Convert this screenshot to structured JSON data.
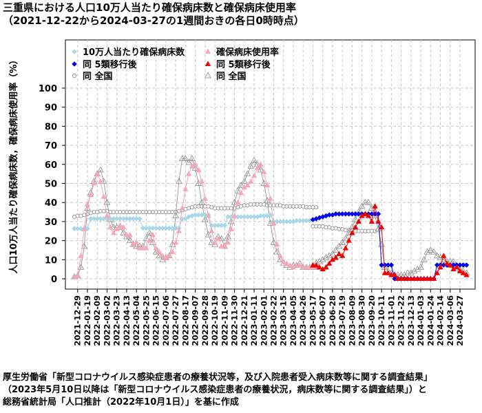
{
  "title": "三重県における人口10万人当たり確保病床数と確保病床使用率",
  "subtitle": "（2021-12-22から2024-03-27の1週間おきの各日0時時点）",
  "footer": {
    "line1": "厚生労働省「新型コロナウイルス感染症患者の療養状況等，及び入院患者受入病床数等に関する調査結果」",
    "line2": "（2023年5月10日以降は「新型コロナウイルス感染症患者の療養状況，病床数等に関する調査結果」）と",
    "line3": "総務省統計局「人口推計（2022年10月1日）」を基に作成"
  },
  "chart_data": {
    "type": "scatter",
    "ylabel": "人口10万人当たり確保病床数，確保病床使用率（%）",
    "ylim": [
      0,
      100
    ],
    "yticks": [
      0,
      10,
      20,
      30,
      40,
      50,
      60,
      70,
      80,
      90,
      100
    ],
    "grid": true,
    "legend_position": "top-left",
    "x_start": "2021-12-22",
    "x_step_days": 7,
    "x_tick_labels": [
      "2021-12-29",
      "2022-01-19",
      "2022-02-09",
      "2022-03-02",
      "2022-03-23",
      "2022-04-13",
      "2022-05-04",
      "2022-05-25",
      "2022-06-15",
      "2022-07-06",
      "2022-07-27",
      "2022-08-17",
      "2022-09-07",
      "2022-09-28",
      "2022-10-19",
      "2022-11-09",
      "2022-11-30",
      "2022-12-21",
      "2023-01-11",
      "2023-02-01",
      "2023-02-22",
      "2023-03-15",
      "2023-04-05",
      "2023-04-26",
      "2023-05-17",
      "2023-06-07",
      "2023-06-28",
      "2023-07-19",
      "2023-08-09",
      "2023-08-30",
      "2023-09-20",
      "2023-10-11",
      "2023-11-01",
      "2023-11-22",
      "2023-12-13",
      "2024-01-03",
      "2024-01-24",
      "2024-02-14",
      "2024-03-06",
      "2024-03-27"
    ],
    "colors": {
      "beds": "#a8d8e8",
      "beds_post": "#0000ee",
      "usage": "#f4a8b8",
      "usage_post": "#ee0000",
      "national": "#999999"
    },
    "series": [
      {
        "name": "10万人当たり確保病床数",
        "marker": "diamond",
        "start": "2021-12-22",
        "values": [
          26.3,
          26.3,
          26.3,
          26.3,
          26.3,
          31.5,
          31.5,
          31.5,
          31.5,
          31.5,
          31.5,
          31.5,
          31.5,
          31.5,
          31.5,
          31.5,
          31.5,
          31.5,
          31.5,
          31.5,
          31.5,
          26.5,
          26.5,
          26.5,
          26.5,
          26.5,
          26.5,
          26.5,
          26.5,
          26.5,
          26.5,
          26.5,
          26.5,
          31.5,
          31.5,
          32.5,
          33,
          33.5,
          33.5,
          33.5,
          33.5,
          33.5,
          28,
          28,
          28,
          28,
          28,
          32.5,
          32.5,
          32.5,
          32.5,
          32.5,
          32.5,
          32.5,
          32.5,
          32.5,
          32.5,
          33,
          33,
          33,
          33.5,
          30,
          30,
          30,
          30,
          30,
          30,
          30,
          30.5,
          30.5,
          30.5,
          30.5,
          30.5,
          31,
          31
        ]
      },
      {
        "name": "同 5類移行後",
        "marker": "diamond",
        "start": "2023-05-17",
        "values": [
          31,
          31.5,
          32,
          32.5,
          33,
          33.5,
          33.5,
          34,
          34,
          34,
          34,
          34,
          34,
          34,
          34,
          34,
          34,
          34,
          34,
          34,
          34,
          7.2,
          7.2,
          7.2,
          7.2,
          0,
          0,
          0,
          0,
          0,
          0,
          0,
          0,
          0,
          0,
          0,
          0,
          0,
          7.2,
          7.2,
          7.2,
          7.2,
          7.2,
          7.2,
          7.2,
          7.2,
          7.2,
          7.2
        ]
      },
      {
        "name": "同 全国",
        "marker": "circle",
        "start": "2021-12-22",
        "values": [
          32.5,
          33,
          33,
          33.5,
          34,
          34.5,
          35,
          35,
          35.5,
          35.5,
          35.5,
          35,
          35,
          35,
          35,
          35,
          35,
          35,
          35,
          35,
          35,
          35,
          35,
          35,
          35,
          35,
          35,
          35,
          35,
          35,
          35,
          35,
          35.5,
          36,
          36.5,
          37,
          37.5,
          38,
          38,
          38,
          38,
          38,
          37.5,
          37,
          37,
          37,
          37,
          37,
          37,
          37,
          37.5,
          38,
          38.5,
          38.5,
          39,
          39,
          39,
          39,
          39,
          38.5,
          38.5,
          38.5,
          38.5,
          38.5,
          38,
          38,
          38,
          38,
          38,
          38,
          38,
          37.5,
          37.5,
          37.5,
          37.5
        ]
      },
      {
        "name": "同 全国",
        "marker": "circle",
        "start": "2023-05-17",
        "values": [
          27.5,
          27.5,
          27.5,
          27.5,
          27,
          27,
          26.5,
          26.5,
          26,
          26,
          25.5,
          25.5,
          25.5,
          25,
          25,
          25,
          25,
          25,
          25,
          25
        ]
      },
      {
        "name": "確保病床使用率",
        "marker": "triangle",
        "start": "2021-12-22",
        "values": [
          1,
          1.5,
          12,
          26,
          39,
          44,
          50,
          55,
          51,
          43,
          33,
          27,
          24,
          26,
          28,
          27,
          23,
          23,
          18,
          19,
          16,
          16,
          16,
          20,
          23,
          16,
          14,
          12,
          11,
          12,
          14,
          19,
          25,
          37,
          47,
          55,
          59,
          60,
          57,
          51,
          42,
          33,
          25,
          19,
          21,
          17,
          17,
          19,
          26,
          33,
          40,
          45,
          48,
          49,
          51,
          54,
          58,
          60,
          56,
          49,
          42,
          29,
          18,
          12,
          9,
          8,
          7,
          6,
          7,
          7,
          6,
          6,
          6,
          6,
          6
        ]
      },
      {
        "name": "同 5類移行後",
        "marker": "triangle",
        "start": "2023-05-17",
        "values": [
          7,
          7,
          6,
          5,
          6,
          8,
          10,
          11,
          13,
          12,
          16,
          20,
          24,
          27,
          30,
          33,
          34,
          33,
          30,
          38,
          30,
          27,
          3,
          3,
          2,
          2,
          0,
          0,
          0,
          0,
          0,
          0,
          0,
          0,
          0,
          0,
          0,
          0,
          3,
          6,
          12,
          8,
          7,
          5,
          6,
          4,
          3,
          2
        ]
      },
      {
        "name": "同 全国",
        "marker": "triangle-open",
        "start": "2021-12-22",
        "values": [
          1,
          1.5,
          6,
          17,
          37,
          45,
          51,
          55,
          57,
          51,
          40,
          31,
          27,
          27,
          27,
          24,
          22,
          20,
          18,
          17,
          17,
          17,
          21,
          24,
          19,
          14,
          12,
          10,
          11,
          12,
          18,
          33,
          51,
          63,
          63,
          61,
          63,
          58,
          50,
          40,
          31,
          23,
          19,
          18,
          22,
          21,
          17,
          22,
          30,
          40,
          46,
          49,
          51,
          55,
          59,
          62,
          60,
          57,
          50,
          41,
          29,
          19,
          14,
          10,
          8,
          7,
          6,
          7,
          7,
          8,
          6,
          6,
          6,
          6,
          6
        ]
      },
      {
        "name": "同 全国",
        "marker": "triangle-open",
        "start": "2023-05-17",
        "values": [
          7,
          8,
          9,
          10,
          11,
          12,
          13,
          15,
          17,
          19,
          21,
          24,
          27,
          31,
          35,
          38,
          40,
          40,
          37,
          33,
          26,
          18,
          6,
          4,
          3,
          2,
          2,
          2,
          2,
          3,
          3,
          4,
          5,
          6,
          10,
          14,
          15,
          14,
          12,
          11,
          10,
          9,
          9,
          9,
          7,
          5,
          4,
          3
        ]
      }
    ],
    "legend": [
      {
        "label": "10万人当たり確保病床数",
        "marker": "diamond",
        "color": "beds"
      },
      {
        "label": "同 5類移行後",
        "marker": "diamond",
        "color": "beds_post"
      },
      {
        "label": "同 全国",
        "marker": "circle",
        "color": "national"
      },
      {
        "label": "確保病床使用率",
        "marker": "triangle",
        "color": "usage"
      },
      {
        "label": "同 5類移行後",
        "marker": "triangle",
        "color": "usage_post"
      },
      {
        "label": "同 全国",
        "marker": "triangle-open",
        "color": "national"
      }
    ]
  }
}
